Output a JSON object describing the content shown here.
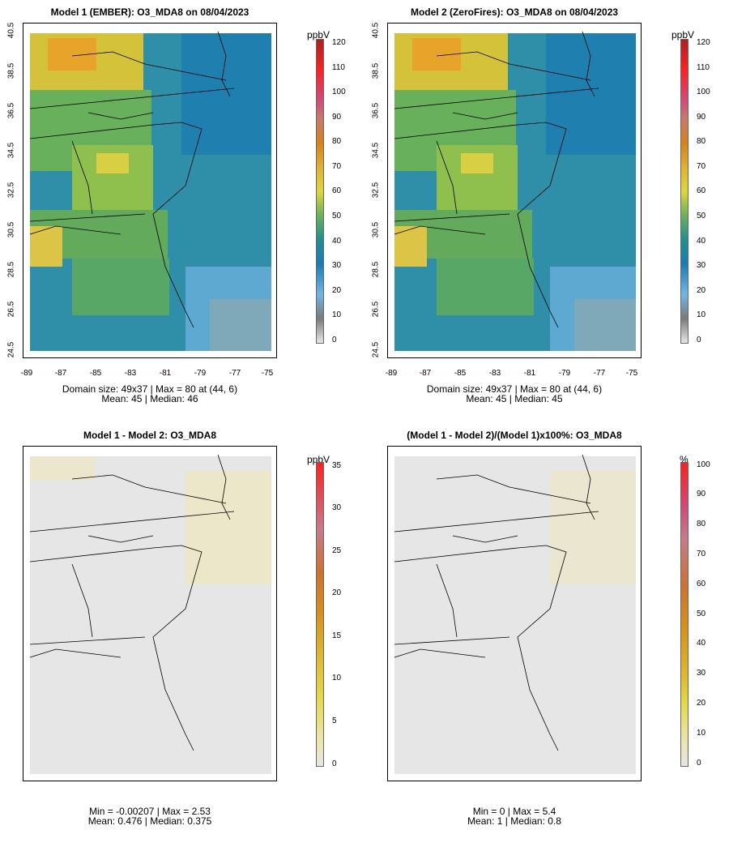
{
  "panels": [
    {
      "title": "Model 1 (EMBER): O3_MDA8 on 08/04/2023",
      "stats_line1": "Domain size: 49x37 | Max = 80 at (44, 6)",
      "stats_line2": "Mean: 45 |  Median: 46",
      "unit": "ppbV",
      "scale": [
        "0",
        "10",
        "20",
        "30",
        "40",
        "50",
        "60",
        "70",
        "80",
        "90",
        "100",
        "110",
        "120"
      ],
      "y_ticks": [
        "40.5",
        "38.5",
        "36.5",
        "34.5",
        "32.5",
        "30.5",
        "28.5",
        "26.5",
        "24.5"
      ],
      "x_ticks": [
        "-89",
        "-87",
        "-85",
        "-83",
        "-81",
        "-79",
        "-77",
        "-75"
      ]
    },
    {
      "title": "Model 2 (ZeroFires): O3_MDA8 on 08/04/2023",
      "stats_line1": "Domain size: 49x37 | Max = 80 at (44, 6)",
      "stats_line2": "Mean: 45 |  Median: 45",
      "unit": "ppbV",
      "scale": [
        "0",
        "10",
        "20",
        "30",
        "40",
        "50",
        "60",
        "70",
        "80",
        "90",
        "100",
        "110",
        "120"
      ],
      "y_ticks": [
        "40.5",
        "38.5",
        "36.5",
        "34.5",
        "32.5",
        "30.5",
        "28.5",
        "26.5",
        "24.5"
      ],
      "x_ticks": [
        "-89",
        "-87",
        "-85",
        "-83",
        "-81",
        "-79",
        "-77",
        "-75"
      ]
    },
    {
      "title": "Model 1 - Model 2: O3_MDA8",
      "stats_line1": "Min = -0.00207 | Max = 2.53",
      "stats_line2": "Mean: 0.476 |  Median: 0.375",
      "unit": "ppbV",
      "scale": [
        "0",
        "5",
        "10",
        "15",
        "20",
        "25",
        "30",
        "35"
      ]
    },
    {
      "title": "(Model 1 - Model 2)/(Model 1)x100%: O3_MDA8",
      "stats_line1": "Min = 0 | Max = 5.4",
      "stats_line2": "Mean: 1 |  Median: 0.8",
      "unit": "%",
      "scale": [
        "0",
        "10",
        "20",
        "30",
        "40",
        "50",
        "60",
        "70",
        "80",
        "90",
        "100"
      ]
    }
  ]
}
